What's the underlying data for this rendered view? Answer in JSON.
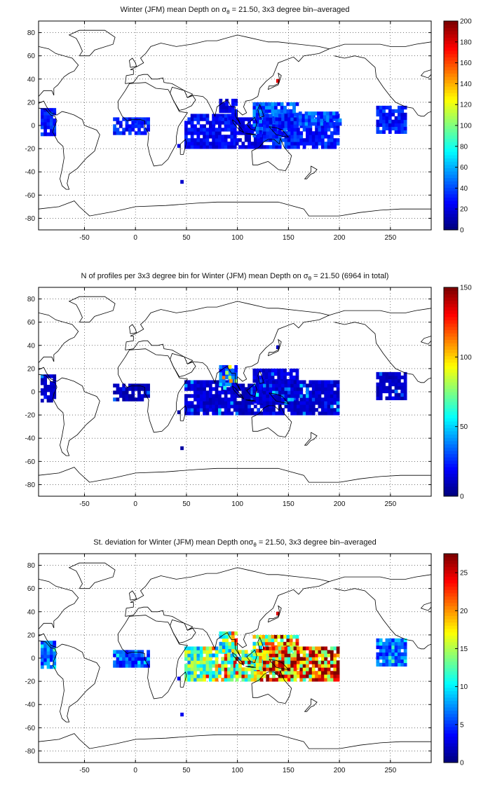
{
  "chart_data": [
    {
      "type": "heatmap",
      "title_main": "Winter (JFM) mean Depth on σ",
      "title_sub": "θ",
      "title_rest": " = 21.50, 3x3 degree bin–averaged",
      "xlim": [
        -95,
        290
      ],
      "ylim": [
        -90,
        90
      ],
      "xticks": [
        -50,
        0,
        50,
        100,
        150,
        200,
        250
      ],
      "yticks": [
        -80,
        -60,
        -40,
        -20,
        0,
        20,
        40,
        60,
        80
      ],
      "grid": true,
      "colormap": "jet",
      "colorbar": {
        "min": 0,
        "max": 200,
        "ticks": [
          0,
          20,
          40,
          60,
          80,
          100,
          120,
          140,
          160,
          180,
          200
        ]
      },
      "regions": [
        {
          "lon": [
            -93,
            -80
          ],
          "lat": [
            -9,
            14
          ],
          "value": 30
        },
        {
          "lon": [
            -22,
            12
          ],
          "lat": [
            -8,
            6
          ],
          "value": 30
        },
        {
          "lon": [
            48,
            98
          ],
          "lat": [
            -20,
            10
          ],
          "value": 25
        },
        {
          "lon": [
            82,
            98
          ],
          "lat": [
            5,
            22
          ],
          "value": 22
        },
        {
          "lon": [
            98,
            125
          ],
          "lat": [
            -20,
            5
          ],
          "value": 20
        },
        {
          "lon": [
            115,
            160
          ],
          "lat": [
            -10,
            20
          ],
          "value": 40
        },
        {
          "lon": [
            125,
            200
          ],
          "lat": [
            -20,
            10
          ],
          "value": 30
        },
        {
          "lon": [
            160,
            200
          ],
          "lat": [
            0,
            10
          ],
          "value": 40
        },
        {
          "lon": [
            236,
            265
          ],
          "lat": [
            -7,
            16
          ],
          "value": 30
        }
      ],
      "points": [
        {
          "lon": 138,
          "lat": 37,
          "value": 180
        },
        {
          "lon": 41,
          "lat": -19,
          "value": 20
        },
        {
          "lon": 44,
          "lat": -50,
          "value": 15
        },
        {
          "lon": -2,
          "lat": 2,
          "value": 30
        }
      ]
    },
    {
      "type": "heatmap",
      "title_main": "N of profiles per 3x3 degree bin for Winter (JFM) mean Depth on σ",
      "title_sub": "θ",
      "title_rest": " = 21.50 (6964 in total)",
      "xlim": [
        -95,
        290
      ],
      "ylim": [
        -90,
        90
      ],
      "xticks": [
        -50,
        0,
        50,
        100,
        150,
        200,
        250
      ],
      "yticks": [
        -80,
        -60,
        -40,
        -20,
        0,
        20,
        40,
        60,
        80
      ],
      "grid": true,
      "colormap": "jet",
      "colorbar": {
        "min": 0,
        "max": 150,
        "ticks": [
          0,
          50,
          100,
          150
        ]
      },
      "regions": [
        {
          "lon": [
            -93,
            -80
          ],
          "lat": [
            -9,
            14
          ],
          "value": 10
        },
        {
          "lon": [
            -22,
            12
          ],
          "lat": [
            -8,
            6
          ],
          "value": 8
        },
        {
          "lon": [
            48,
            98
          ],
          "lat": [
            -20,
            10
          ],
          "value": 12
        },
        {
          "lon": [
            82,
            98
          ],
          "lat": [
            5,
            22
          ],
          "value": 30
        },
        {
          "lon": [
            98,
            125
          ],
          "lat": [
            -20,
            5
          ],
          "value": 10
        },
        {
          "lon": [
            115,
            160
          ],
          "lat": [
            -10,
            20
          ],
          "value": 14
        },
        {
          "lon": [
            125,
            200
          ],
          "lat": [
            -20,
            10
          ],
          "value": 12
        },
        {
          "lon": [
            236,
            265
          ],
          "lat": [
            -7,
            16
          ],
          "value": 10
        }
      ],
      "points": [
        {
          "lon": 88,
          "lat": 15,
          "value": 80
        },
        {
          "lon": 92,
          "lat": 8,
          "value": 110
        },
        {
          "lon": 86,
          "lat": 2,
          "value": 60
        },
        {
          "lon": 138,
          "lat": 37,
          "value": 10
        },
        {
          "lon": 41,
          "lat": -19,
          "value": 5
        },
        {
          "lon": 44,
          "lat": -50,
          "value": 5
        }
      ]
    },
    {
      "type": "heatmap",
      "title_main": "St. deviation for Winter (JFM) mean Depth onσ",
      "title_sub": "θ",
      "title_rest": " = 21.50, 3x3 degree bin–averaged",
      "xlim": [
        -95,
        290
      ],
      "ylim": [
        -90,
        90
      ],
      "xticks": [
        -50,
        0,
        50,
        100,
        150,
        200,
        250
      ],
      "yticks": [
        -80,
        -60,
        -40,
        -20,
        0,
        20,
        40,
        60,
        80
      ],
      "grid": true,
      "colormap": "jet",
      "colorbar": {
        "min": 0,
        "max": 27.5,
        "ticks": [
          0,
          5,
          10,
          15,
          20,
          25
        ]
      },
      "regions": [
        {
          "lon": [
            -93,
            -80
          ],
          "lat": [
            -9,
            14
          ],
          "value": 6
        },
        {
          "lon": [
            -22,
            12
          ],
          "lat": [
            -8,
            6
          ],
          "value": 5
        },
        {
          "lon": [
            48,
            98
          ],
          "lat": [
            -20,
            10
          ],
          "value": 12
        },
        {
          "lon": [
            82,
            98
          ],
          "lat": [
            5,
            22
          ],
          "value": 11
        },
        {
          "lon": [
            98,
            125
          ],
          "lat": [
            -20,
            5
          ],
          "value": 14
        },
        {
          "lon": [
            115,
            160
          ],
          "lat": [
            -10,
            20
          ],
          "value": 15
        },
        {
          "lon": [
            125,
            200
          ],
          "lat": [
            -20,
            10
          ],
          "value": 20
        },
        {
          "lon": [
            236,
            265
          ],
          "lat": [
            -7,
            16
          ],
          "value": 6
        }
      ],
      "points": [
        {
          "lon": 138,
          "lat": 37,
          "value": 25
        },
        {
          "lon": 41,
          "lat": -19,
          "value": 3
        },
        {
          "lon": 44,
          "lat": -50,
          "value": 3
        }
      ]
    }
  ]
}
